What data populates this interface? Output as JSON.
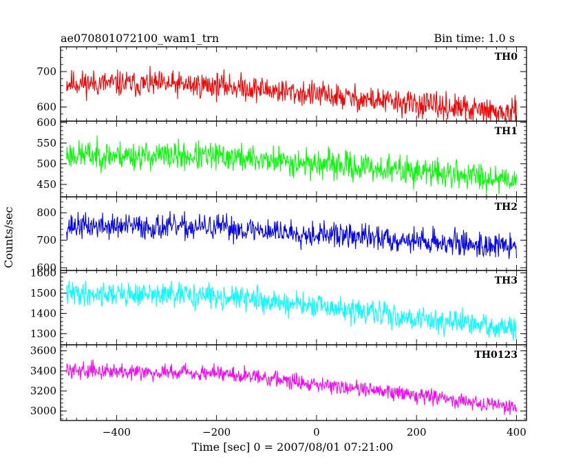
{
  "header": {
    "left_title": "ae070801072100_wam1_trn",
    "right_title": "Bin time: 1.0 s"
  },
  "ylabel": "Counts/sec",
  "xlabel": "Time [sec] 0 = 2007/08/01 07:21:00",
  "chart_data": {
    "type": "line",
    "x_range": [
      -500,
      400
    ],
    "xlim": [
      -512,
      420
    ],
    "x_ticks": [
      -400,
      -200,
      0,
      200,
      400
    ],
    "x_tick_labels": [
      "−400",
      "−200",
      "0",
      "200",
      "400"
    ],
    "xlabel": "Time [sec] 0 = 2007/08/01 07:21:00",
    "ylabel": "Counts/sec",
    "title": "ae070801072100_wam1_trn",
    "subtitle": "Bin time: 1.0 s",
    "panels": [
      {
        "label": "TH0",
        "color": "#ff0000",
        "ylim": [
          560,
          770
        ],
        "ticks": [
          600,
          700
        ],
        "tick_labels": [
          "600",
          "700"
        ],
        "start": 668,
        "end": 580,
        "noise": 28,
        "seed": 11
      },
      {
        "label": "TH1",
        "color": "#00ff00",
        "ylim": [
          420,
          603
        ],
        "ticks": [
          450,
          500,
          550,
          600
        ],
        "tick_labels": [
          "450",
          "500",
          "550",
          "600"
        ],
        "start": 522,
        "end": 463,
        "noise": 26,
        "seed": 23
      },
      {
        "label": "TH2",
        "color": "#0000ff",
        "ylim": [
          590,
          858
        ],
        "ticks": [
          600,
          700,
          800
        ],
        "tick_labels": [
          "600",
          "700",
          "800"
        ],
        "start": 752,
        "end": 675,
        "noise": 35,
        "seed": 37
      },
      {
        "label": "TH3",
        "color": "#00ffff",
        "ylim": [
          1245,
          1612
        ],
        "ticks": [
          1300,
          1400,
          1500,
          1600
        ],
        "tick_labels": [
          "1300",
          "1400",
          "1500",
          "1600"
        ],
        "start": 1500,
        "end": 1320,
        "noise": 45,
        "seed": 41
      },
      {
        "label": "TH0123",
        "color": "#ff00ff",
        "ylim": [
          2905,
          3660
        ],
        "ticks": [
          3000,
          3200,
          3400,
          3600
        ],
        "tick_labels": [
          "3000",
          "3200",
          "3400",
          "3600"
        ],
        "start": 3410,
        "end": 3040,
        "noise": 60,
        "seed": 59
      }
    ]
  }
}
